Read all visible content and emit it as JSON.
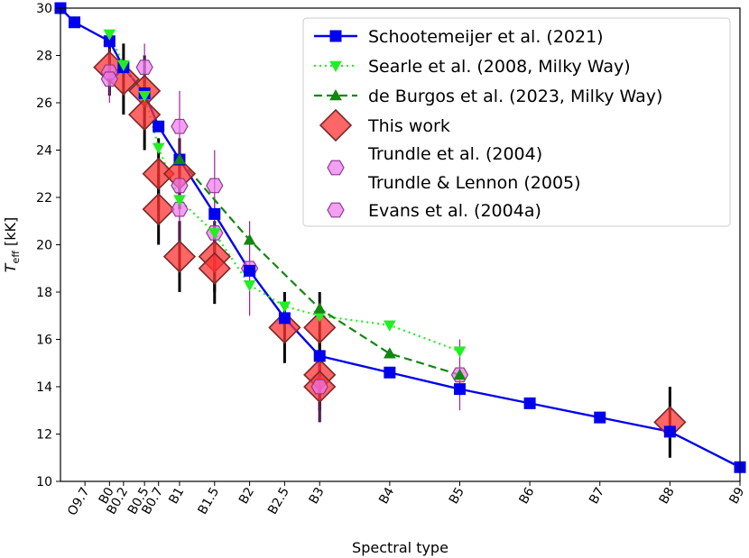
{
  "chart_data": {
    "type": "line",
    "xlabel": "Spectral type",
    "ylabel": "T",
    "ylabel_sub": "eff",
    "ylabel_unit": " [kK]",
    "ylim": [
      10,
      30
    ],
    "yticks": [
      10,
      12,
      14,
      16,
      18,
      20,
      22,
      24,
      26,
      28,
      30
    ],
    "xticks": [
      {
        "label": "O9.7",
        "x": 0.3
      },
      {
        "label": "B0",
        "x": 1.0
      },
      {
        "label": "B0.2",
        "x": 1.4
      },
      {
        "label": "B0.5",
        "x": 2.0
      },
      {
        "label": "B0.7",
        "x": 2.4
      },
      {
        "label": "B1",
        "x": 3.0
      },
      {
        "label": "B1.5",
        "x": 4.0
      },
      {
        "label": "B2",
        "x": 5.0
      },
      {
        "label": "B2.5",
        "x": 6.0
      },
      {
        "label": "B3",
        "x": 7.0
      },
      {
        "label": "B4",
        "x": 9.0
      },
      {
        "label": "B5",
        "x": 11.0
      },
      {
        "label": "B6",
        "x": 13.0
      },
      {
        "label": "B7",
        "x": 15.0
      },
      {
        "label": "B8",
        "x": 17.0
      },
      {
        "label": "B9",
        "x": 19.0
      }
    ],
    "grid": false,
    "legend_position": "top-right",
    "series": [
      {
        "name": "Schootemeijer et al. (2021)",
        "kind": "line",
        "marker": "square",
        "color": "#0000ee",
        "linestyle": "solid",
        "points": [
          [
            -0.4,
            30.0
          ],
          [
            0.0,
            29.4
          ],
          [
            1.0,
            28.6
          ],
          [
            1.4,
            27.5
          ],
          [
            2.0,
            26.4
          ],
          [
            2.4,
            25.0
          ],
          [
            3.0,
            23.6
          ],
          [
            4.0,
            21.3
          ],
          [
            5.0,
            18.9
          ],
          [
            6.0,
            16.9
          ],
          [
            7.0,
            15.3
          ],
          [
            9.0,
            14.6
          ],
          [
            11.0,
            13.9
          ],
          [
            13.0,
            13.3
          ],
          [
            15.0,
            12.7
          ],
          [
            17.0,
            12.1
          ],
          [
            19.0,
            10.6
          ]
        ]
      },
      {
        "name": "Searle et al. (2008, Milky Way)",
        "kind": "line",
        "marker": "triangle-down",
        "color": "#22ee22",
        "linestyle": "dotted",
        "points": [
          [
            1.0,
            28.9
          ],
          [
            1.4,
            27.6
          ],
          [
            2.0,
            26.3
          ],
          [
            2.4,
            24.1
          ],
          [
            3.0,
            21.9
          ],
          [
            4.0,
            20.5
          ],
          [
            5.0,
            18.3
          ],
          [
            6.0,
            17.4
          ],
          [
            7.0,
            17.0
          ],
          [
            9.0,
            16.6
          ],
          [
            11.0,
            15.5
          ]
        ]
      },
      {
        "name": "de Burgos et al. (2023, Milky Way)",
        "kind": "line",
        "marker": "triangle-up",
        "color": "#118811",
        "linestyle": "dashed",
        "points": [
          [
            3.0,
            23.6
          ],
          [
            5.0,
            20.2
          ],
          [
            7.0,
            17.3
          ],
          [
            9.0,
            15.4
          ],
          [
            11.0,
            14.5
          ]
        ]
      },
      {
        "name": "This work",
        "kind": "scatter",
        "marker": "diamond",
        "color": "#ff3333",
        "points": [
          {
            "x": 1.0,
            "y": 27.5,
            "err": 1.2
          },
          {
            "x": 1.4,
            "y": 27.0,
            "err": 1.5
          },
          {
            "x": 2.0,
            "y": 26.5,
            "err": 1.5
          },
          {
            "x": 2.0,
            "y": 25.5,
            "err": 1.5
          },
          {
            "x": 2.4,
            "y": 23.0,
            "err": 1.5
          },
          {
            "x": 2.4,
            "y": 21.5,
            "err": 1.5
          },
          {
            "x": 3.0,
            "y": 23.0,
            "err": 1.5
          },
          {
            "x": 3.0,
            "y": 19.5,
            "err": 1.5
          },
          {
            "x": 4.0,
            "y": 19.5,
            "err": 1.5
          },
          {
            "x": 4.0,
            "y": 19.0,
            "err": 1.5
          },
          {
            "x": 6.0,
            "y": 16.5,
            "err": 1.5
          },
          {
            "x": 7.0,
            "y": 16.5,
            "err": 1.5
          },
          {
            "x": 7.0,
            "y": 14.5,
            "err": 1.5
          },
          {
            "x": 7.0,
            "y": 14.0,
            "err": 1.5
          },
          {
            "x": 17.0,
            "y": 12.5,
            "err": 1.5
          }
        ]
      },
      {
        "name": "Trundle et al. (2004)\nTrundle & Lennon (2005)",
        "kind": "scatter",
        "marker": "hexagon",
        "color": "#ee77ee",
        "points": [
          {
            "x": 1.0,
            "y": 27.3,
            "err": 1.0
          },
          {
            "x": 1.0,
            "y": 27.0,
            "err": 1.0
          },
          {
            "x": 3.0,
            "y": 25.0,
            "err": 1.5
          },
          {
            "x": 3.0,
            "y": 22.5,
            "err": 1.5
          },
          {
            "x": 3.0,
            "y": 21.5,
            "err": 1.5
          },
          {
            "x": 4.0,
            "y": 22.5,
            "err": 1.5
          },
          {
            "x": 4.0,
            "y": 20.5,
            "err": 1.5
          },
          {
            "x": 5.0,
            "y": 19.0,
            "err": 2.0
          },
          {
            "x": 7.0,
            "y": 14.0,
            "err": 1.5
          },
          {
            "x": 11.0,
            "y": 14.5,
            "err": 1.5
          }
        ]
      },
      {
        "name": "Evans et al. (2004a)",
        "kind": "scatter",
        "marker": "hexagon",
        "color": "#ee77ee",
        "points": [
          {
            "x": 2.0,
            "y": 27.5,
            "err": 1.0
          }
        ]
      }
    ]
  }
}
